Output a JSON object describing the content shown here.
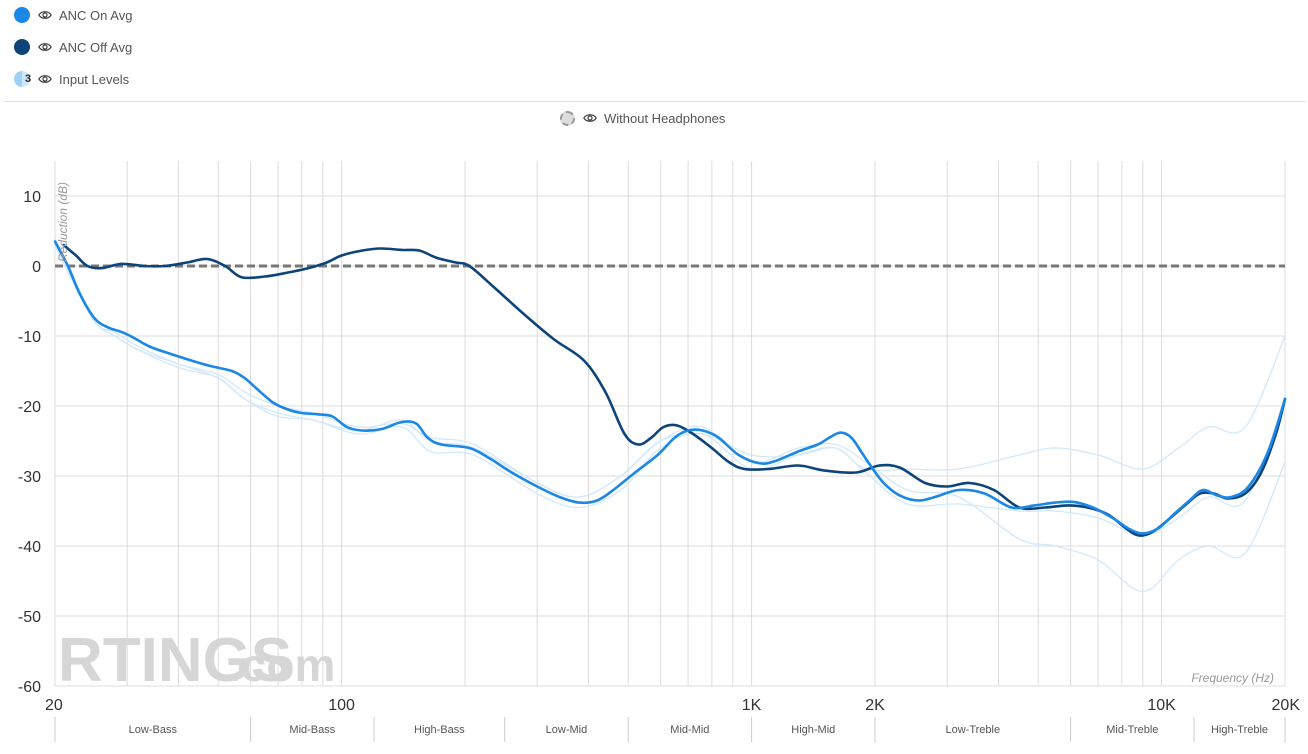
{
  "legend": {
    "items": [
      {
        "label": "ANC On Avg",
        "color": "#1b87e6"
      },
      {
        "label": "ANC Off Avg",
        "color": "#0d4479"
      },
      {
        "label": "Input Levels",
        "color": "#9fd0f5",
        "badge": "3"
      }
    ],
    "without_headphones": "Without Headphones"
  },
  "watermark": {
    "brand": "RTINGS",
    "suffix": ".com"
  },
  "chart_data": {
    "type": "line",
    "xscale": "log",
    "xlim": [
      20,
      20000
    ],
    "ylim": [
      -60,
      15
    ],
    "xlabel": "Frequency (Hz)",
    "ylabel": "Reduction (dB)",
    "yticks": [
      10,
      0,
      -10,
      -20,
      -30,
      -40,
      -50,
      -60
    ],
    "xticks": [
      {
        "value": 20,
        "label": "20"
      },
      {
        "value": 100,
        "label": "100"
      },
      {
        "value": 1000,
        "label": "1K"
      },
      {
        "value": 2000,
        "label": "2K"
      },
      {
        "value": 10000,
        "label": "10K"
      },
      {
        "value": 20000,
        "label": "20K"
      }
    ],
    "bands": [
      {
        "label": "Low-Bass",
        "from": 20,
        "to": 60
      },
      {
        "label": "Mid-Bass",
        "from": 60,
        "to": 120
      },
      {
        "label": "High-Bass",
        "from": 120,
        "to": 250
      },
      {
        "label": "Low-Mid",
        "from": 250,
        "to": 500
      },
      {
        "label": "Mid-Mid",
        "from": 500,
        "to": 1000
      },
      {
        "label": "High-Mid",
        "from": 1000,
        "to": 2000
      },
      {
        "label": "Low-Treble",
        "from": 2000,
        "to": 6000
      },
      {
        "label": "Mid-Treble",
        "from": 6000,
        "to": 12000
      },
      {
        "label": "High-Treble",
        "from": 12000,
        "to": 20000
      }
    ],
    "reference": {
      "name": "Without Headphones",
      "value": 0
    },
    "series": [
      {
        "name": "Input Level 1",
        "color": "#d2e8fb",
        "width": 1.3,
        "points": [
          [
            20,
            3
          ],
          [
            22,
            -2
          ],
          [
            25,
            -8
          ],
          [
            28,
            -10
          ],
          [
            32,
            -12
          ],
          [
            40,
            -14
          ],
          [
            50,
            -16
          ],
          [
            58,
            -19
          ],
          [
            70,
            -21
          ],
          [
            85,
            -22
          ],
          [
            110,
            -23.5
          ],
          [
            140,
            -22
          ],
          [
            165,
            -25
          ],
          [
            210,
            -26
          ],
          [
            300,
            -31
          ],
          [
            380,
            -33
          ],
          [
            480,
            -30
          ],
          [
            600,
            -25
          ],
          [
            760,
            -24
          ],
          [
            1000,
            -27
          ],
          [
            1300,
            -27
          ],
          [
            1600,
            -26
          ],
          [
            1900,
            -29
          ],
          [
            2400,
            -29
          ],
          [
            3200,
            -29
          ],
          [
            4500,
            -27
          ],
          [
            5500,
            -26
          ],
          [
            7000,
            -27
          ],
          [
            9000,
            -29
          ],
          [
            11000,
            -26
          ],
          [
            13000,
            -23
          ],
          [
            16000,
            -23
          ],
          [
            20000,
            -10
          ]
        ]
      },
      {
        "name": "Input Level 2",
        "color": "#d2e8fb",
        "width": 1.3,
        "points": [
          [
            20,
            4
          ],
          [
            22,
            -1
          ],
          [
            25,
            -8
          ],
          [
            28,
            -9.5
          ],
          [
            32,
            -11.5
          ],
          [
            40,
            -14
          ],
          [
            50,
            -15.5
          ],
          [
            58,
            -18
          ],
          [
            70,
            -20
          ],
          [
            85,
            -21
          ],
          [
            110,
            -23
          ],
          [
            140,
            -22.5
          ],
          [
            165,
            -24.5
          ],
          [
            210,
            -25.5
          ],
          [
            300,
            -31
          ],
          [
            380,
            -33
          ],
          [
            480,
            -30
          ],
          [
            600,
            -25
          ],
          [
            760,
            -23
          ],
          [
            1000,
            -28
          ],
          [
            1300,
            -26
          ],
          [
            1600,
            -25.5
          ],
          [
            1900,
            -28
          ],
          [
            2400,
            -32
          ],
          [
            3200,
            -33
          ],
          [
            4500,
            -39
          ],
          [
            5500,
            -40
          ],
          [
            7000,
            -42
          ],
          [
            9000,
            -46.5
          ],
          [
            11000,
            -42
          ],
          [
            13000,
            -40
          ],
          [
            16000,
            -41
          ],
          [
            20000,
            -28
          ]
        ]
      },
      {
        "name": "Input Level 3",
        "color": "#d2e8fb",
        "width": 1.3,
        "points": [
          [
            20,
            3
          ],
          [
            22,
            -2
          ],
          [
            25,
            -8
          ],
          [
            28,
            -10
          ],
          [
            32,
            -12
          ],
          [
            40,
            -14.5
          ],
          [
            50,
            -16
          ],
          [
            58,
            -19
          ],
          [
            70,
            -21.5
          ],
          [
            85,
            -22
          ],
          [
            110,
            -24
          ],
          [
            140,
            -23
          ],
          [
            165,
            -26.5
          ],
          [
            210,
            -27
          ],
          [
            300,
            -32.5
          ],
          [
            380,
            -34.5
          ],
          [
            480,
            -32
          ],
          [
            600,
            -26
          ],
          [
            760,
            -24
          ],
          [
            1000,
            -29
          ],
          [
            1300,
            -27
          ],
          [
            1600,
            -26
          ],
          [
            1900,
            -29.5
          ],
          [
            2400,
            -34
          ],
          [
            3200,
            -34
          ],
          [
            4500,
            -35
          ],
          [
            5500,
            -35
          ],
          [
            7000,
            -36
          ],
          [
            9000,
            -38.5
          ],
          [
            11000,
            -36
          ],
          [
            13000,
            -33
          ],
          [
            16000,
            -33.5
          ],
          [
            20000,
            -19
          ]
        ]
      },
      {
        "name": "ANC Off Avg",
        "color": "#0d4479",
        "width": 2.6,
        "points": [
          [
            21,
            3
          ],
          [
            22.5,
            1.5
          ],
          [
            24,
            0
          ],
          [
            26,
            -0.3
          ],
          [
            29,
            0.3
          ],
          [
            33,
            0
          ],
          [
            37,
            0
          ],
          [
            42,
            0.5
          ],
          [
            47,
            1
          ],
          [
            52,
            0
          ],
          [
            57,
            -1.6
          ],
          [
            65,
            -1.5
          ],
          [
            73,
            -1
          ],
          [
            83,
            -0.3
          ],
          [
            92,
            0.5
          ],
          [
            100,
            1.5
          ],
          [
            112,
            2.2
          ],
          [
            125,
            2.5
          ],
          [
            140,
            2.3
          ],
          [
            155,
            2.2
          ],
          [
            170,
            1.2
          ],
          [
            190,
            0.5
          ],
          [
            205,
            0
          ],
          [
            235,
            -3
          ],
          [
            280,
            -7
          ],
          [
            330,
            -10.5
          ],
          [
            390,
            -13.5
          ],
          [
            440,
            -18
          ],
          [
            490,
            -24
          ],
          [
            530,
            -25.5
          ],
          [
            570,
            -24.5
          ],
          [
            610,
            -23
          ],
          [
            660,
            -22.8
          ],
          [
            720,
            -24
          ],
          [
            800,
            -26
          ],
          [
            880,
            -28
          ],
          [
            960,
            -29
          ],
          [
            1100,
            -29
          ],
          [
            1300,
            -28.5
          ],
          [
            1500,
            -29.2
          ],
          [
            1800,
            -29.5
          ],
          [
            2050,
            -28.5
          ],
          [
            2300,
            -28.8
          ],
          [
            2650,
            -31
          ],
          [
            3000,
            -31.5
          ],
          [
            3400,
            -31
          ],
          [
            3900,
            -32
          ],
          [
            4500,
            -34.5
          ],
          [
            5200,
            -34.5
          ],
          [
            5900,
            -34.2
          ],
          [
            6600,
            -34.5
          ],
          [
            7400,
            -35.5
          ],
          [
            8200,
            -37.5
          ],
          [
            8800,
            -38.5
          ],
          [
            9500,
            -38
          ],
          [
            10500,
            -36
          ],
          [
            11500,
            -34
          ],
          [
            12400,
            -32.5
          ],
          [
            13400,
            -32.5
          ],
          [
            14500,
            -33.2
          ],
          [
            16000,
            -32.5
          ],
          [
            17500,
            -29.5
          ],
          [
            19000,
            -24
          ],
          [
            20000,
            -19
          ]
        ]
      },
      {
        "name": "ANC On Avg",
        "color": "#1b87e6",
        "width": 2.6,
        "points": [
          [
            20,
            3.5
          ],
          [
            21.5,
            0
          ],
          [
            23,
            -4
          ],
          [
            25,
            -7.5
          ],
          [
            27,
            -8.8
          ],
          [
            29,
            -9.4
          ],
          [
            31,
            -10.2
          ],
          [
            34,
            -11.5
          ],
          [
            38,
            -12.5
          ],
          [
            43,
            -13.5
          ],
          [
            48,
            -14.3
          ],
          [
            54,
            -15
          ],
          [
            58,
            -16
          ],
          [
            62,
            -17.5
          ],
          [
            68,
            -19.5
          ],
          [
            74,
            -20.5
          ],
          [
            80,
            -21
          ],
          [
            88,
            -21.2
          ],
          [
            95,
            -21.5
          ],
          [
            103,
            -23
          ],
          [
            112,
            -23.5
          ],
          [
            125,
            -23.3
          ],
          [
            140,
            -22.3
          ],
          [
            152,
            -22.5
          ],
          [
            162,
            -24.5
          ],
          [
            175,
            -25.5
          ],
          [
            205,
            -26
          ],
          [
            230,
            -27.5
          ],
          [
            260,
            -29.5
          ],
          [
            300,
            -31.5
          ],
          [
            340,
            -33
          ],
          [
            380,
            -33.8
          ],
          [
            420,
            -33.5
          ],
          [
            460,
            -32
          ],
          [
            520,
            -29.5
          ],
          [
            590,
            -27
          ],
          [
            650,
            -24.5
          ],
          [
            700,
            -23.5
          ],
          [
            760,
            -23.5
          ],
          [
            830,
            -24.5
          ],
          [
            930,
            -27
          ],
          [
            1050,
            -28.2
          ],
          [
            1150,
            -27.8
          ],
          [
            1300,
            -26.5
          ],
          [
            1450,
            -25.5
          ],
          [
            1550,
            -24.5
          ],
          [
            1650,
            -23.8
          ],
          [
            1750,
            -24.5
          ],
          [
            1850,
            -26.5
          ],
          [
            1950,
            -28.5
          ],
          [
            2100,
            -31
          ],
          [
            2300,
            -32.8
          ],
          [
            2550,
            -33.5
          ],
          [
            2800,
            -33
          ],
          [
            3200,
            -32
          ],
          [
            3700,
            -32.5
          ],
          [
            4300,
            -34.5
          ],
          [
            4900,
            -34.2
          ],
          [
            5500,
            -33.8
          ],
          [
            6100,
            -33.7
          ],
          [
            6800,
            -34.5
          ],
          [
            7600,
            -36
          ],
          [
            8300,
            -37.5
          ],
          [
            9000,
            -38.2
          ],
          [
            9800,
            -37.5
          ],
          [
            10700,
            -35.5
          ],
          [
            11700,
            -33.5
          ],
          [
            12600,
            -32
          ],
          [
            13700,
            -32.8
          ],
          [
            14800,
            -33
          ],
          [
            16300,
            -31.5
          ],
          [
            18200,
            -26.5
          ],
          [
            20000,
            -19
          ]
        ]
      }
    ]
  }
}
